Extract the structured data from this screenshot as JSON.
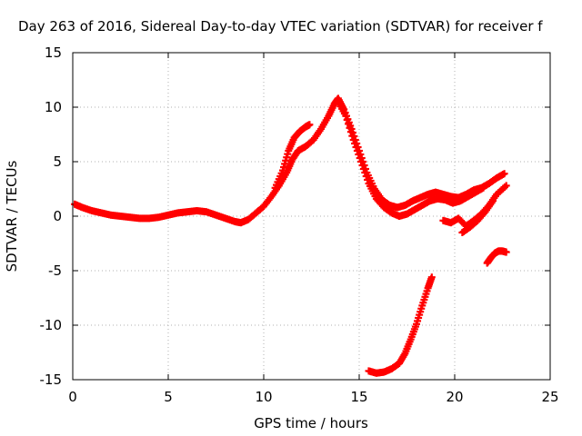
{
  "chart_data": {
    "type": "scatter",
    "title": "Day 263 of 2016, Sidereal Day-to-day VTEC variation (SDTVAR) for receiver f",
    "xlabel": "GPS time / hours",
    "ylabel": "SDTVAR / TECUs",
    "xlim": [
      0,
      25
    ],
    "ylim": [
      -15,
      15
    ],
    "xticks": [
      0,
      5,
      10,
      15,
      20,
      25
    ],
    "yticks": [
      -15,
      -10,
      -5,
      0,
      5,
      10,
      15
    ],
    "grid": true,
    "legend": "none",
    "series_color": "#ff0000",
    "series": [
      {
        "x": [
          0.1,
          0.5,
          1.0,
          1.5,
          2.0,
          2.5,
          3.0,
          3.5,
          4.0,
          4.5,
          5.0,
          5.5,
          6.0,
          6.5,
          7.0,
          7.5,
          8.0,
          8.5,
          8.8,
          9.2,
          9.6,
          10.0,
          10.4,
          10.8,
          11.2,
          11.5,
          11.8,
          12.2,
          12.6,
          13.0,
          13.4,
          13.7,
          13.9,
          14.2,
          14.6,
          15.0,
          15.4,
          15.8,
          16.2,
          16.6,
          17.0,
          17.4,
          17.8,
          18.2,
          18.6,
          19.0,
          19.4,
          19.8,
          20.2,
          20.6,
          21.0,
          21.4,
          21.8,
          22.2,
          22.6
        ],
        "y": [
          1.1,
          0.8,
          0.5,
          0.3,
          0.1,
          0.0,
          -0.1,
          -0.2,
          -0.2,
          -0.1,
          0.1,
          0.3,
          0.4,
          0.5,
          0.4,
          0.1,
          -0.2,
          -0.5,
          -0.6,
          -0.3,
          0.3,
          0.9,
          1.8,
          2.8,
          4.0,
          5.2,
          6.0,
          6.4,
          7.0,
          8.0,
          9.2,
          10.3,
          10.8,
          9.8,
          8.0,
          6.0,
          4.0,
          2.5,
          1.5,
          1.0,
          0.8,
          1.0,
          1.4,
          1.7,
          2.0,
          2.2,
          2.0,
          1.8,
          1.7,
          2.0,
          2.4,
          2.6,
          3.0,
          3.5,
          3.9
        ]
      },
      {
        "x": [
          10.6,
          11.0,
          11.3,
          11.6,
          11.9,
          12.2,
          12.4
        ],
        "y": [
          2.6,
          4.2,
          6.0,
          7.2,
          7.8,
          8.2,
          8.4
        ]
      },
      {
        "x": [
          13.9,
          14.3,
          14.7,
          15.1,
          15.5,
          15.9,
          16.3,
          16.7,
          17.1,
          17.5,
          17.9,
          18.3,
          18.7,
          19.1,
          19.5,
          19.9,
          20.3,
          20.7,
          21.1,
          21.5
        ],
        "y": [
          10.5,
          9.2,
          7.0,
          5.0,
          3.0,
          1.6,
          0.8,
          0.3,
          0.0,
          0.2,
          0.6,
          1.0,
          1.4,
          1.6,
          1.5,
          1.2,
          1.4,
          1.8,
          2.2,
          2.6
        ]
      },
      {
        "x": [
          19.4,
          19.8,
          20.2,
          20.6,
          21.0,
          21.4,
          21.8,
          22.2,
          22.7
        ],
        "y": [
          -0.4,
          -0.6,
          -0.2,
          -0.9,
          -0.4,
          0.2,
          1.0,
          2.0,
          2.8
        ]
      },
      {
        "x": [
          20.4,
          20.8,
          21.2,
          21.6,
          22.0
        ],
        "y": [
          -1.5,
          -1.0,
          -0.4,
          0.4,
          1.4
        ]
      },
      {
        "x": [
          21.7,
          21.9,
          22.1,
          22.3,
          22.5,
          22.7
        ],
        "y": [
          -4.3,
          -3.8,
          -3.4,
          -3.2,
          -3.2,
          -3.3
        ]
      },
      {
        "x": [
          15.5,
          15.9,
          16.3,
          16.7,
          17.1,
          17.4,
          17.7,
          18.0,
          18.3,
          18.6,
          18.8
        ],
        "y": [
          -14.2,
          -14.4,
          -14.3,
          -14.0,
          -13.5,
          -12.6,
          -11.3,
          -9.9,
          -8.2,
          -6.6,
          -5.6
        ]
      }
    ]
  }
}
